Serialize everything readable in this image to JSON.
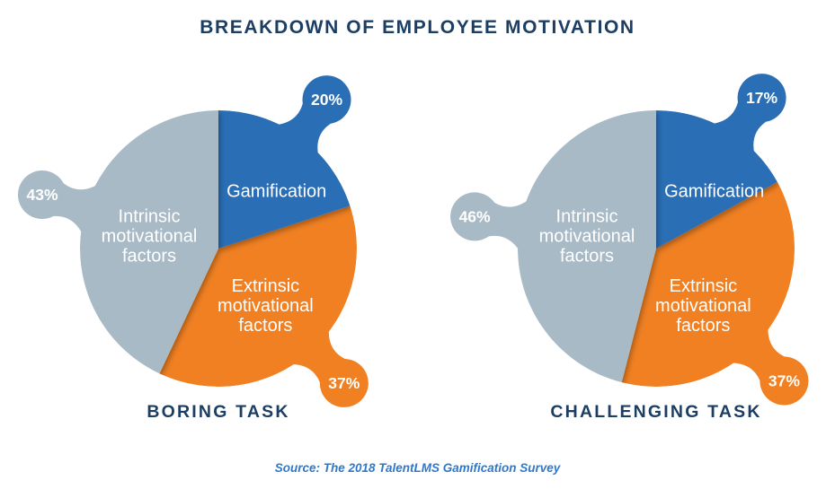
{
  "header": {
    "title": "BREAKDOWN OF EMPLOYEE MOTIVATION"
  },
  "source": {
    "text": "Source: The 2018 TalentLMS Gamification Survey"
  },
  "colors": {
    "gamification_blue": "#2A6EB5",
    "extrinsic_orange": "#F08022",
    "intrinsic_gray": "#A9BAC7",
    "heading_navy": "#1C3E63",
    "source_blue": "#2F78C9",
    "label_white": "#FFFFFF"
  },
  "chart_data": [
    {
      "type": "pie",
      "title": "BORING TASK",
      "start_angle_deg": 0,
      "direction": "clockwise",
      "legend_position": "none",
      "slices": [
        {
          "label": "Gamification",
          "label_lines": [
            "Gamification"
          ],
          "value": 20,
          "unit": "%",
          "callout": "20%",
          "color": "#2A6EB5",
          "bubble_angle_deg": 36
        },
        {
          "label": "Extrinsic motivational factors",
          "label_lines": [
            "Extrinsic",
            "motivational",
            "factors"
          ],
          "value": 37,
          "unit": "%",
          "callout": "37%",
          "color": "#F08022",
          "bubble_angle_deg": 137
        },
        {
          "label": "Intrinsic motivational factors",
          "label_lines": [
            "Intrinsic",
            "motivational",
            "factors"
          ],
          "value": 43,
          "unit": "%",
          "callout": "43%",
          "color": "#A9BAC7",
          "bubble_angle_deg": 287
        }
      ]
    },
    {
      "type": "pie",
      "title": "CHALLENGING TASK",
      "start_angle_deg": 0,
      "direction": "clockwise",
      "legend_position": "none",
      "slices": [
        {
          "label": "Gamification",
          "label_lines": [
            "Gamification"
          ],
          "value": 17,
          "unit": "%",
          "callout": "17%",
          "color": "#2A6EB5",
          "bubble_angle_deg": 35
        },
        {
          "label": "Extrinsic motivational factors",
          "label_lines": [
            "Extrinsic",
            "motivational",
            "factors"
          ],
          "value": 37,
          "unit": "%",
          "callout": "37%",
          "color": "#F08022",
          "bubble_angle_deg": 136
        },
        {
          "label": "Intrinsic motivational factors",
          "label_lines": [
            "Intrinsic",
            "motivational",
            "factors"
          ],
          "value": 46,
          "unit": "%",
          "callout": "46%",
          "color": "#A9BAC7",
          "bubble_angle_deg": 280
        }
      ]
    }
  ]
}
